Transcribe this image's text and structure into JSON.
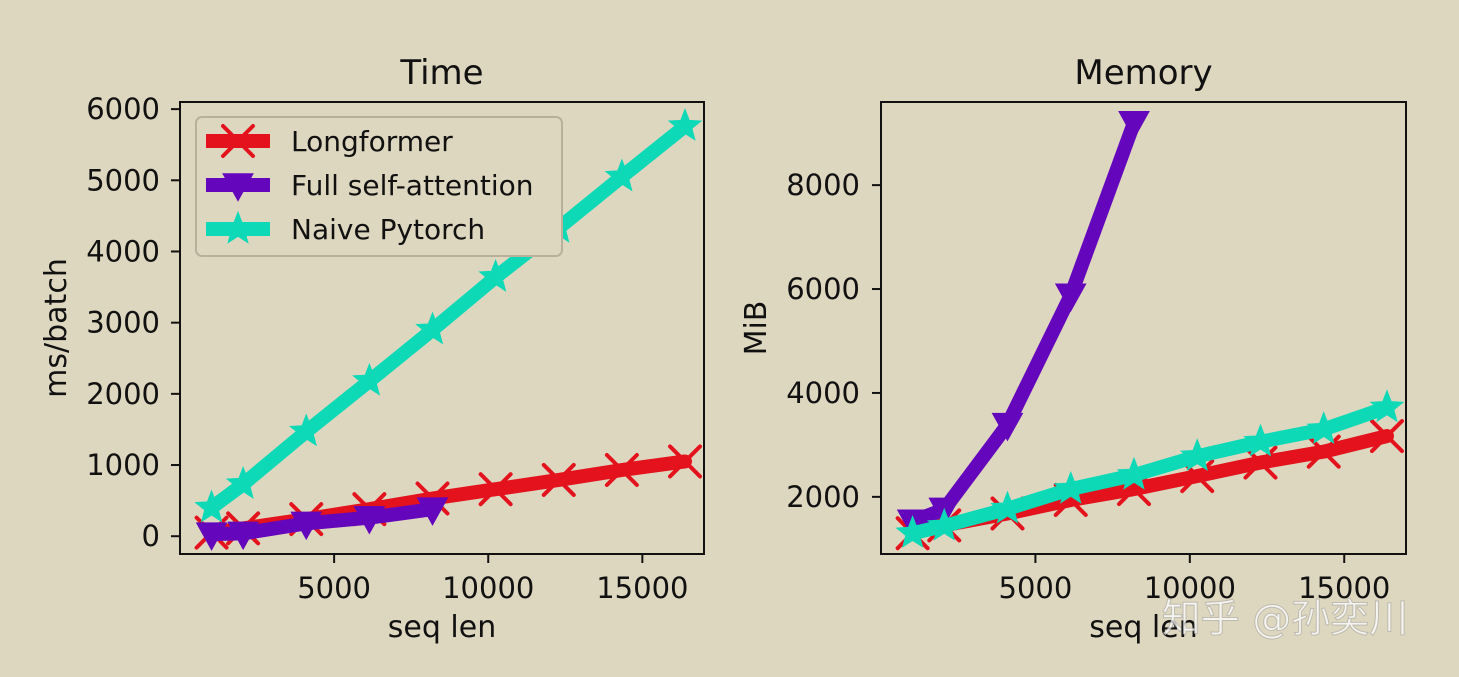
{
  "chart_data": [
    {
      "type": "line",
      "title": "Time",
      "xlabel": "seq len",
      "ylabel": "ms/batch",
      "xlim": [
        0,
        17000
      ],
      "ylim": [
        -250,
        6100
      ],
      "x_ticks": [
        5000,
        10000,
        15000
      ],
      "x_tick_labels": [
        "5000",
        "10000",
        "15000"
      ],
      "y_ticks": [
        0,
        1000,
        2000,
        3000,
        4000,
        5000,
        6000
      ],
      "y_tick_labels": [
        "0",
        "1000",
        "2000",
        "3000",
        "4000",
        "5000",
        "6000"
      ],
      "grid": false,
      "legend_position": "top-left",
      "series": [
        {
          "name": "Longformer",
          "color": "#e3121c",
          "marker": "x",
          "x": [
            1024,
            2048,
            4096,
            6144,
            8192,
            10240,
            12288,
            14336,
            16384
          ],
          "y": [
            50,
            110,
            240,
            380,
            530,
            660,
            790,
            930,
            1050
          ]
        },
        {
          "name": "Full self-attention",
          "color": "#6407bc",
          "marker": "triangle-down",
          "x": [
            1024,
            2048,
            4096,
            6144,
            8192
          ],
          "y": [
            30,
            40,
            180,
            260,
            380
          ]
        },
        {
          "name": "Naive Pytorch",
          "color": "#0dd9b7",
          "marker": "star",
          "x": [
            1024,
            2048,
            4096,
            6144,
            8192,
            10240,
            12288,
            14336,
            16384
          ],
          "y": [
            400,
            730,
            1470,
            2180,
            2900,
            3640,
            4330,
            5050,
            5760
          ]
        }
      ]
    },
    {
      "type": "line",
      "title": "Memory",
      "xlabel": "seq len",
      "ylabel": "MiB",
      "xlim": [
        0,
        17000
      ],
      "ylim": [
        900,
        9600
      ],
      "x_ticks": [
        5000,
        10000,
        15000
      ],
      "x_tick_labels": [
        "5000",
        "10000",
        "15000"
      ],
      "y_ticks": [
        2000,
        4000,
        6000,
        8000
      ],
      "y_tick_labels": [
        "2000",
        "4000",
        "6000",
        "8000"
      ],
      "grid": false,
      "legend_position": "none",
      "series": [
        {
          "name": "Longformer",
          "color": "#e3121c",
          "marker": "x",
          "x": [
            1024,
            2048,
            4096,
            6144,
            8192,
            10240,
            12288,
            14336,
            16384
          ],
          "y": [
            1300,
            1450,
            1680,
            1940,
            2150,
            2400,
            2660,
            2870,
            3170
          ]
        },
        {
          "name": "Full self-attention",
          "color": "#6407bc",
          "marker": "triangle-down",
          "x": [
            1024,
            2048,
            4096,
            6144,
            8192
          ],
          "y": [
            1530,
            1760,
            3390,
            5880,
            9200
          ]
        },
        {
          "name": "Naive Pytorch",
          "color": "#0dd9b7",
          "marker": "star",
          "x": [
            1024,
            2048,
            4096,
            6144,
            8192,
            10240,
            12288,
            14336,
            16384
          ],
          "y": [
            1300,
            1440,
            1770,
            2150,
            2420,
            2780,
            3060,
            3300,
            3720
          ]
        }
      ]
    }
  ],
  "watermark": "知乎 @孙奕川",
  "background_color": "#ded7c0"
}
